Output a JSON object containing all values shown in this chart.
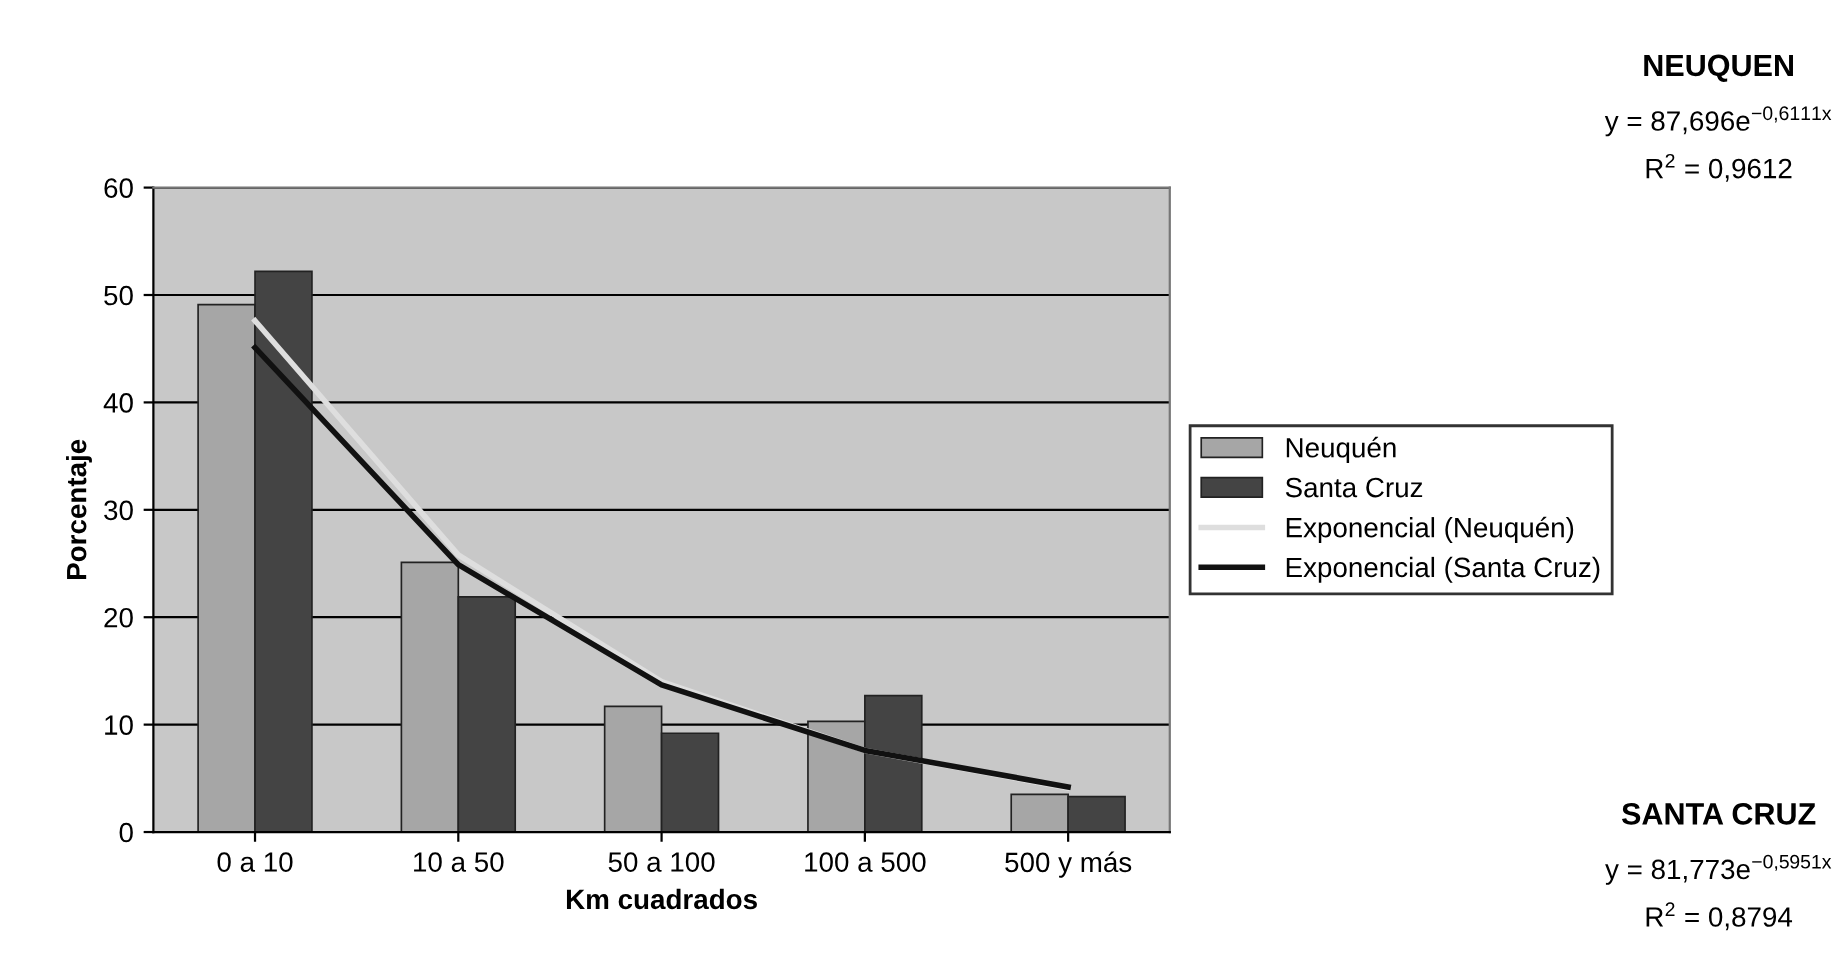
{
  "chart_data": {
    "type": "bar",
    "xlabel": "Km cuadrados",
    "ylabel": "Porcentaje",
    "categories": [
      "0 a 10",
      "10 a 50",
      "50 a 100",
      "100 a 500",
      "500 y más"
    ],
    "series": [
      {
        "name": "Neuquén",
        "color": "#a6a6a6",
        "values": [
          49.1,
          25.1,
          11.7,
          10.3,
          3.5
        ]
      },
      {
        "name": "Santa Cruz",
        "color": "#444444",
        "values": [
          52.2,
          21.9,
          9.2,
          12.7,
          3.3
        ]
      },
      {
        "name": "Exponencial (Neuquén)",
        "type": "line",
        "color": "#dedede",
        "values": [
          47.6,
          25.8,
          14.0,
          7.6,
          4.1
        ]
      },
      {
        "name": "Exponencial (Santa Cruz)",
        "type": "line",
        "color": "#111111",
        "values": [
          45.1,
          24.9,
          13.7,
          7.6,
          4.2
        ]
      }
    ],
    "ylim": [
      0,
      60
    ],
    "yticks": [
      0,
      10,
      20,
      30,
      40,
      50,
      60
    ],
    "grid": "y",
    "legend": "right",
    "annotations": [
      "NEUQUEN",
      "y = 87,696e$^{−0,6111x}$",
      "R$^{2}$ = 0,9612",
      "SANTA CRUZ",
      "y = 81,773e$^{−0,5951x}$",
      "R$^{2}$ = 0,8794"
    ]
  }
}
